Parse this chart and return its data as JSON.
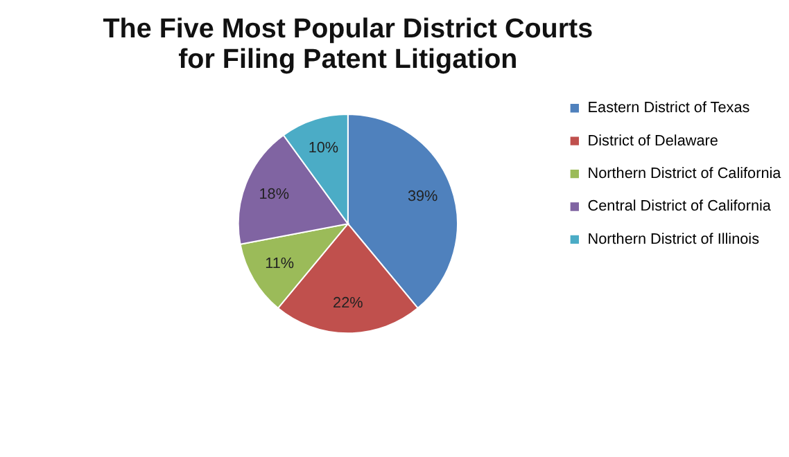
{
  "chart_data": {
    "type": "pie",
    "title": [
      "The Five Most Popular District Courts",
      "for Filing Patent Litigation"
    ],
    "categories": [
      "Eastern District of Texas",
      "District of Delaware",
      "Northern District of California",
      "Central District of California",
      "Northern District of Illinois"
    ],
    "values": [
      39,
      22,
      11,
      18,
      10
    ],
    "value_labels": [
      "39%",
      "22%",
      "11%",
      "18%",
      "10%"
    ],
    "colors": [
      "#4f81bd",
      "#c0504d",
      "#9bbb59",
      "#8064a2",
      "#4bacc6"
    ],
    "legend": "right"
  }
}
